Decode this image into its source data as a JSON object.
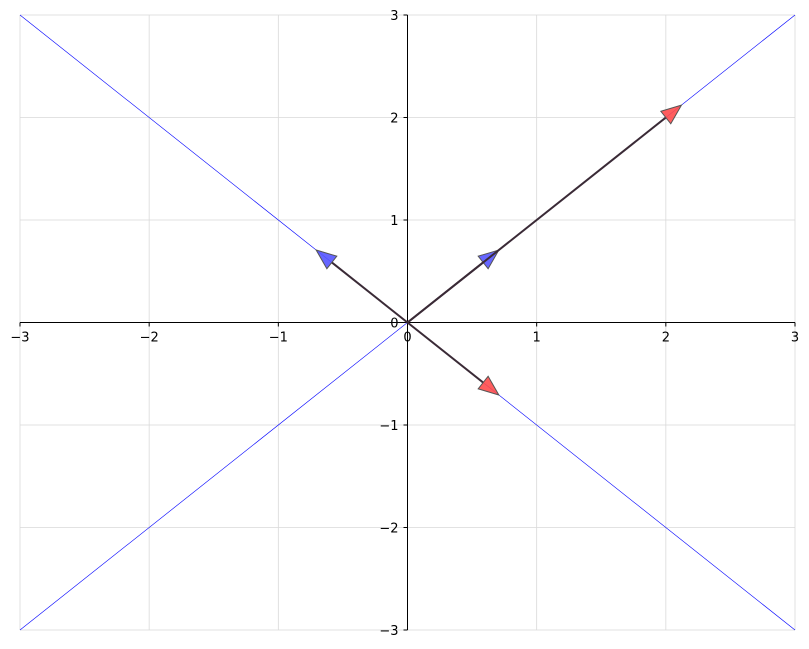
{
  "chart_data": {
    "type": "line",
    "title": "",
    "xlabel": "",
    "ylabel": "",
    "xlim": [
      -3,
      3
    ],
    "ylim": [
      -3,
      3
    ],
    "grid": true,
    "spines": "centered at origin",
    "xticks": [
      "−3",
      "−2",
      "−1",
      "0",
      "1",
      "2",
      "3"
    ],
    "yticks": [
      "−3",
      "−2",
      "−1",
      "0",
      "1",
      "2",
      "3"
    ],
    "xtick_values": [
      -3,
      -2,
      -1,
      0,
      1,
      2,
      3
    ],
    "ytick_values": [
      -3,
      -2,
      -1,
      0,
      1,
      2,
      3
    ],
    "lines": [
      {
        "slope": 1,
        "color": "#0000ff"
      },
      {
        "slope": -1,
        "color": "#0000ff"
      }
    ],
    "arrows": [
      {
        "from": [
          0,
          0
        ],
        "to": [
          0.707,
          0.707
        ],
        "head_color": "#5555ff"
      },
      {
        "from": [
          0,
          0
        ],
        "to": [
          -0.707,
          0.707
        ],
        "head_color": "#5555ff"
      },
      {
        "from": [
          0,
          0
        ],
        "to": [
          2.121,
          2.121
        ],
        "head_color": "#ff4c4c"
      },
      {
        "from": [
          0,
          0
        ],
        "to": [
          0.707,
          -0.707
        ],
        "head_color": "#ff4c4c"
      }
    ],
    "colors": {
      "shaft": "#3a2a36",
      "grid": "#d9d9d9",
      "axis": "#000000"
    }
  }
}
